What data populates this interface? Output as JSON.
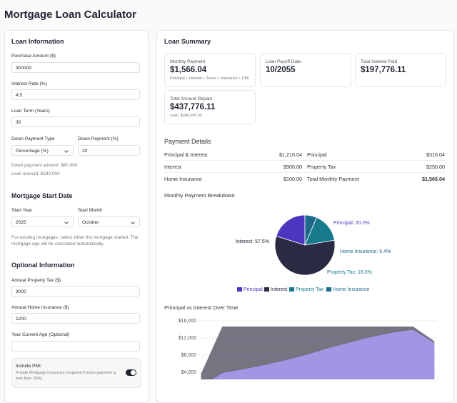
{
  "header": {
    "title": "Mortgage Loan Calculator"
  },
  "loan_info": {
    "title": "Loan Information",
    "fields": [
      {
        "label": "Purchase Amount ($)",
        "value": "300000"
      },
      {
        "label": "Interest Rate (%)",
        "value": "4.5"
      },
      {
        "label": "Loan Term (Years)",
        "value": "30"
      }
    ],
    "down_payment_type": {
      "label": "Down Payment Type",
      "value": "Percentage (%)"
    },
    "down_payment": {
      "label": "Down Payment (%)",
      "value": "20"
    },
    "notes": [
      "Down payment amount: $60,000",
      "Loan amount: $240,000"
    ]
  },
  "start_date": {
    "title": "Mortgage Start Date",
    "year": {
      "label": "Start Year",
      "value": "2025"
    },
    "month": {
      "label": "Start Month",
      "value": "October"
    },
    "note": "For existing mortgages, select when the mortgage started. The mortgage age will be calculated automatically."
  },
  "optional": {
    "title": "Optional Information",
    "fields": [
      {
        "label": "Annual Property Tax ($)",
        "value": "3000"
      },
      {
        "label": "Annual Home Insurance ($)",
        "value": "1200"
      },
      {
        "label": "Your Current Age (Optional)"
      }
    ]
  },
  "pmi": {
    "label": "Include PMI",
    "note": "Private Mortgage Insurance (required if down payment is less than 20%)"
  },
  "summary": {
    "title": "Loan Summary",
    "cards": [
      {
        "label": "Monthly Payment",
        "value": "$1,566.04",
        "note": "Principal + Interest + Taxes + Insurance + PMI"
      },
      {
        "label": "Loan Payoff Date",
        "value": "10/2055"
      },
      {
        "label": "Total Interest Paid",
        "value": "$197,776.11"
      },
      {
        "label": "Total Amount Repaid",
        "value": "$437,776.11",
        "note": "Loan: $240,000.00"
      }
    ]
  },
  "details": {
    "title": "Payment Details",
    "rows": [
      [
        "Principal & Interest",
        "$1,216.04",
        "Principal",
        "$316.04"
      ],
      [
        "Interest",
        "$900.00",
        "Property Tax",
        "$250.00"
      ],
      [
        "Home Insurance",
        "$100.00",
        "Total Monthly Payment",
        "$1,566.04"
      ]
    ]
  },
  "chart_data": [
    {
      "type": "pie",
      "title": "Monthly Payment Breakdown",
      "categories": [
        "Principal",
        "Interest",
        "Property Tax",
        "Home Insurance"
      ],
      "values": [
        20.2,
        57.5,
        16.0,
        6.4
      ],
      "value_labels": [
        "Principal: 20.2%",
        "Interest: 57.5%",
        "Property Tax: 16.0%",
        "Home Insurance: 6.4%"
      ],
      "colors": [
        "#4c36c0",
        "#2a2b42",
        "#16798c",
        "#1d6a8c"
      ],
      "legend": "bottom"
    },
    {
      "type": "area",
      "title": "Principal vs Interest Over Time",
      "stacked": true,
      "grid": true,
      "categories": [
        null,
        null,
        null,
        null,
        null,
        null,
        null,
        null,
        null,
        null,
        null,
        null
      ],
      "series": [
        {
          "color": "#9d8fe2",
          "values": [
            950,
            3900,
            4800,
            5800,
            6900,
            8200,
            9700,
            11000,
            12300,
            13300,
            14000,
            11000
          ]
        },
        {
          "color": "#6e6e7b",
          "values": [
            2700,
            10700,
            9800,
            8800,
            7700,
            6400,
            4900,
            3600,
            2300,
            1300,
            600,
            200
          ]
        }
      ],
      "ylim": [
        0,
        16000
      ],
      "yticks": [
        {
          "value": 4000,
          "label": "$4,000"
        },
        {
          "value": 8000,
          "label": "$8,000"
        },
        {
          "value": 12000,
          "label": "$12,000"
        },
        {
          "value": 16000,
          "label": "$16,000"
        }
      ]
    }
  ]
}
